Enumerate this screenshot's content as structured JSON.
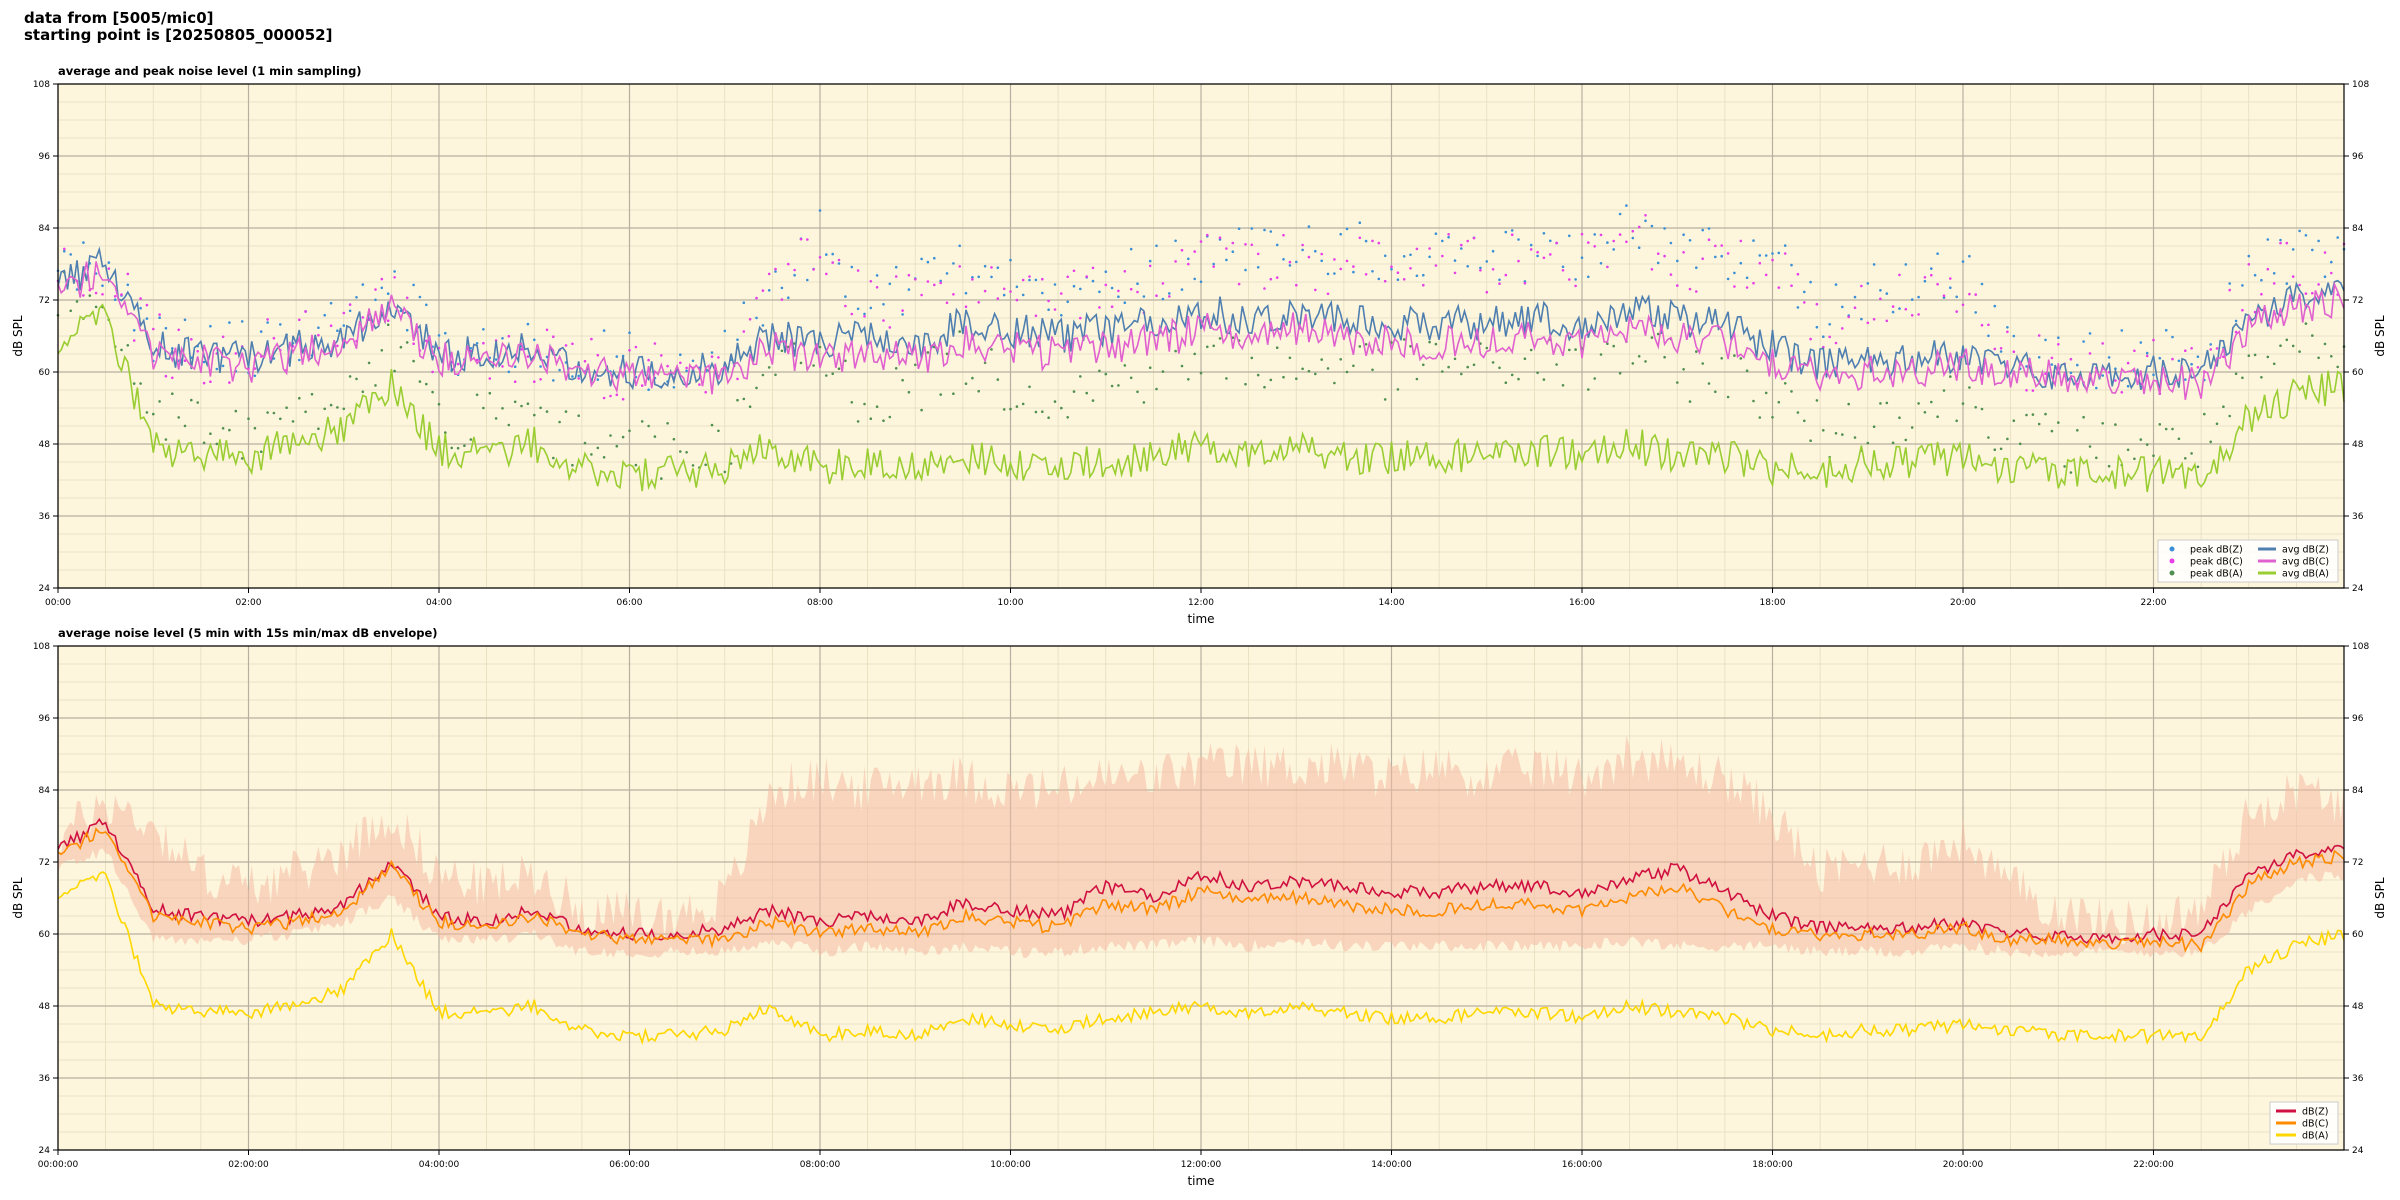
{
  "header": {
    "source_line": "data from [5005/mic0]",
    "start_line": "starting point is [20250805_000052]"
  },
  "colors": {
    "plot_bg": "#fdf6dc",
    "peak_z": "#3a8fd6",
    "peak_c": "#e83ee8",
    "peak_a": "#4f8f4f",
    "avg_z": "#4f7fb0",
    "avg_c": "#e060d0",
    "avg_a": "#9acd32",
    "db_z": "#d01040",
    "db_c": "#ff8c00",
    "db_a": "#ffd700",
    "envelope": "#f4b9a2"
  },
  "chart_data": [
    {
      "type": "line",
      "title": "average and peak noise level (1 min sampling)",
      "xlabel": "time",
      "ylabel": "dB SPL",
      "xlim": [
        0,
        24
      ],
      "ylim": [
        24,
        108
      ],
      "yticks": [
        24,
        36,
        48,
        60,
        72,
        84,
        96,
        108
      ],
      "xtick_labels": [
        "00:00",
        "02:00",
        "04:00",
        "06:00",
        "08:00",
        "10:00",
        "12:00",
        "14:00",
        "16:00",
        "18:00",
        "20:00",
        "22:00"
      ],
      "grid": true,
      "legend_position": "lower-right",
      "x": [
        0,
        0.5,
        1,
        1.5,
        2,
        2.5,
        3,
        3.5,
        4,
        4.5,
        5,
        5.5,
        6,
        6.5,
        7,
        7.5,
        8,
        8.5,
        9,
        9.5,
        10,
        10.5,
        11,
        11.5,
        12,
        12.5,
        13,
        13.5,
        14,
        14.5,
        15,
        15.5,
        16,
        16.5,
        17,
        17.5,
        18,
        18.5,
        19,
        19.5,
        20,
        20.5,
        21,
        21.5,
        22,
        22.5,
        23,
        23.5,
        24
      ],
      "series": [
        {
          "name": "peak dB(Z)",
          "marker": "dot",
          "values": [
            78,
            78,
            66,
            63,
            64,
            66,
            68,
            75,
            64,
            64,
            64,
            62,
            62,
            62,
            62,
            75,
            82,
            72,
            75,
            78,
            74,
            74,
            76,
            76,
            80,
            80,
            80,
            80,
            80,
            80,
            80,
            80,
            80,
            85,
            80,
            80,
            80,
            68,
            74,
            74,
            76,
            64,
            62,
            62,
            62,
            62,
            76,
            80,
            78
          ]
        },
        {
          "name": "peak dB(C)",
          "marker": "dot",
          "values": [
            77,
            77,
            65,
            62,
            63,
            65,
            67,
            74,
            63,
            63,
            63,
            61,
            60,
            60,
            60,
            74,
            80,
            70,
            73,
            76,
            72,
            72,
            74,
            74,
            78,
            78,
            78,
            78,
            78,
            78,
            78,
            78,
            78,
            83,
            78,
            78,
            78,
            66,
            72,
            72,
            74,
            62,
            61,
            61,
            61,
            61,
            74,
            78,
            77
          ]
        },
        {
          "name": "peak dB(A)",
          "marker": "dot",
          "values": [
            72,
            70,
            55,
            50,
            50,
            52,
            56,
            64,
            52,
            52,
            50,
            48,
            47,
            47,
            48,
            60,
            62,
            55,
            58,
            62,
            58,
            56,
            58,
            60,
            62,
            62,
            60,
            62,
            60,
            62,
            60,
            62,
            60,
            64,
            60,
            60,
            56,
            50,
            52,
            54,
            56,
            50,
            48,
            48,
            48,
            48,
            58,
            64,
            62
          ]
        },
        {
          "name": "avg dB(Z)",
          "values": [
            74,
            79,
            64,
            63,
            62,
            64,
            66,
            71,
            63,
            63,
            64,
            61,
            60,
            60,
            61,
            66,
            65,
            66,
            64,
            68,
            67,
            66,
            67,
            68,
            70,
            69,
            70,
            69,
            68,
            68,
            68,
            69,
            68,
            70,
            69,
            68,
            64,
            61,
            62,
            62,
            63,
            61,
            60,
            59,
            60,
            60,
            69,
            72,
            73
          ]
        },
        {
          "name": "avg dB(C)",
          "values": [
            73,
            78,
            63,
            62,
            61,
            63,
            65,
            70,
            62,
            62,
            63,
            60,
            59,
            59,
            59,
            64,
            62,
            63,
            62,
            65,
            64,
            63,
            64,
            65,
            67,
            66,
            67,
            66,
            65,
            65,
            65,
            66,
            65,
            67,
            66,
            65,
            62,
            60,
            60,
            60,
            61,
            60,
            59,
            58,
            59,
            58,
            67,
            71,
            72
          ]
        },
        {
          "name": "avg dB(A)",
          "values": [
            66,
            70,
            47,
            46,
            46,
            48,
            51,
            58,
            47,
            47,
            48,
            44,
            43,
            43,
            44,
            48,
            44,
            45,
            44,
            46,
            45,
            44,
            45,
            46,
            48,
            47,
            48,
            46,
            46,
            46,
            46,
            47,
            46,
            48,
            46,
            46,
            44,
            43,
            45,
            45,
            46,
            44,
            43,
            43,
            43,
            43,
            52,
            56,
            58
          ]
        }
      ]
    },
    {
      "type": "line",
      "title": "average noise level (5 min with 15s min/max dB envelope)",
      "xlabel": "time",
      "ylabel": "dB SPL",
      "xlim": [
        0,
        24
      ],
      "ylim": [
        24,
        108
      ],
      "yticks": [
        24,
        36,
        48,
        60,
        72,
        84,
        96,
        108
      ],
      "xtick_labels": [
        "00:00:00",
        "02:00:00",
        "04:00:00",
        "06:00:00",
        "08:00:00",
        "10:00:00",
        "12:00:00",
        "14:00:00",
        "16:00:00",
        "18:00:00",
        "20:00:00",
        "22:00:00"
      ],
      "grid": true,
      "legend_position": "lower-right",
      "x": [
        0,
        0.5,
        1,
        1.5,
        2,
        2.5,
        3,
        3.5,
        4,
        4.5,
        5,
        5.5,
        6,
        6.5,
        7,
        7.5,
        8,
        8.5,
        9,
        9.5,
        10,
        10.5,
        11,
        11.5,
        12,
        12.5,
        13,
        13.5,
        14,
        14.5,
        15,
        15.5,
        16,
        16.5,
        17,
        17.5,
        18,
        18.5,
        19,
        19.5,
        20,
        20.5,
        21,
        21.5,
        22,
        22.5,
        23,
        23.5,
        24
      ],
      "envelope": {
        "low": [
          71,
          74,
          59,
          59,
          59,
          60,
          62,
          66,
          59,
          59,
          60,
          57,
          57,
          57,
          57,
          59,
          57,
          58,
          57,
          58,
          57,
          57,
          58,
          58,
          59,
          58,
          59,
          58,
          58,
          58,
          58,
          58,
          58,
          59,
          58,
          58,
          58,
          57,
          57,
          57,
          58,
          57,
          57,
          57,
          57,
          57,
          64,
          69,
          70
        ],
        "high": [
          76,
          82,
          78,
          70,
          68,
          70,
          74,
          80,
          70,
          68,
          70,
          64,
          63,
          63,
          66,
          84,
          86,
          84,
          86,
          86,
          84,
          84,
          86,
          86,
          88,
          88,
          88,
          88,
          86,
          88,
          86,
          88,
          86,
          90,
          88,
          86,
          80,
          70,
          72,
          72,
          76,
          68,
          64,
          62,
          62,
          64,
          80,
          84,
          82
        ]
      },
      "series": [
        {
          "name": "dB(Z)",
          "values": [
            74,
            79,
            64,
            63,
            62,
            63,
            65,
            72,
            63,
            62,
            64,
            61,
            60,
            60,
            61,
            64,
            62,
            63,
            62,
            65,
            64,
            63,
            68,
            66,
            70,
            68,
            69,
            68,
            67,
            67,
            68,
            68,
            67,
            69,
            71,
            67,
            63,
            61,
            61,
            61,
            62,
            60,
            60,
            59,
            60,
            60,
            70,
            73,
            74
          ]
        },
        {
          "name": "dB(C)",
          "values": [
            73,
            78,
            63,
            62,
            61,
            62,
            64,
            71,
            62,
            61,
            63,
            60,
            59,
            59,
            59,
            62,
            60,
            61,
            60,
            63,
            62,
            61,
            65,
            64,
            67,
            66,
            66,
            65,
            64,
            64,
            65,
            65,
            64,
            66,
            68,
            64,
            61,
            60,
            60,
            60,
            61,
            59,
            59,
            58,
            59,
            58,
            68,
            72,
            73
          ]
        },
        {
          "name": "dB(A)",
          "values": [
            67,
            70,
            48,
            47,
            47,
            48,
            51,
            60,
            47,
            47,
            48,
            44,
            43,
            43,
            44,
            48,
            43,
            44,
            43,
            46,
            45,
            44,
            46,
            47,
            48,
            47,
            48,
            47,
            46,
            46,
            47,
            47,
            46,
            48,
            47,
            46,
            44,
            43,
            44,
            44,
            45,
            44,
            43,
            43,
            43,
            43,
            54,
            58,
            60
          ]
        }
      ]
    }
  ]
}
